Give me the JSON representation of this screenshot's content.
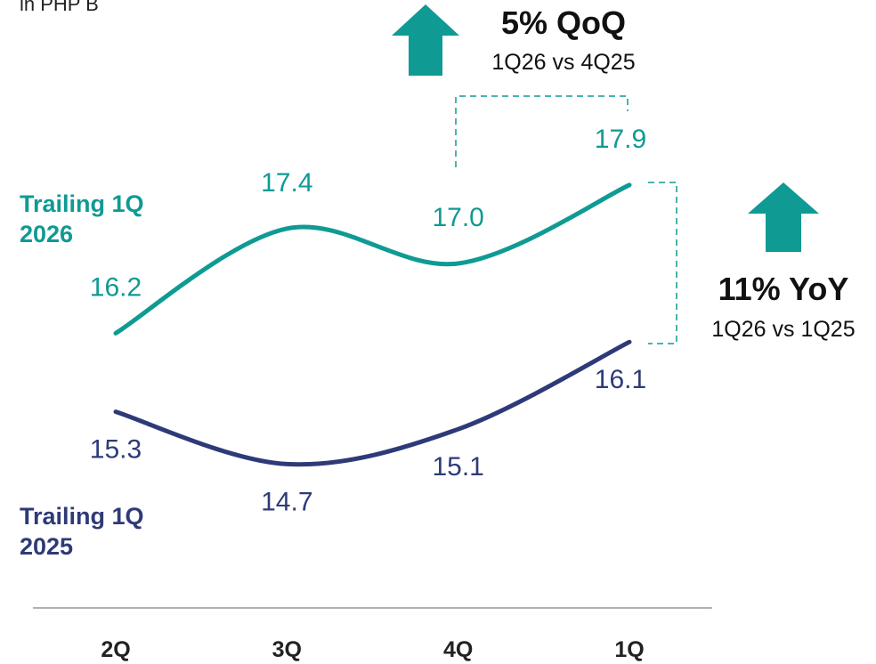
{
  "chart_data": {
    "type": "line",
    "title": "in PHP B",
    "categories": [
      "2Q",
      "3Q",
      "4Q",
      "1Q"
    ],
    "series": [
      {
        "name": "Trailing 1Q 2026",
        "color": "#0f9a94",
        "values": [
          16.2,
          17.4,
          17.0,
          17.9
        ],
        "value_labels": [
          "16.2",
          "17.4",
          "17.0",
          "17.9"
        ]
      },
      {
        "name": "Trailing 1Q 2025",
        "color": "#2e3a78",
        "values": [
          15.3,
          14.7,
          15.1,
          16.1
        ],
        "value_labels": [
          "15.3",
          "14.7",
          "15.1",
          "16.1"
        ]
      }
    ],
    "ylim": [
      13,
      19
    ],
    "annotations": [
      "5% QoQ",
      "1Q26 vs 4Q25",
      "11% YoY",
      "1Q26 vs 1Q25"
    ]
  }
}
